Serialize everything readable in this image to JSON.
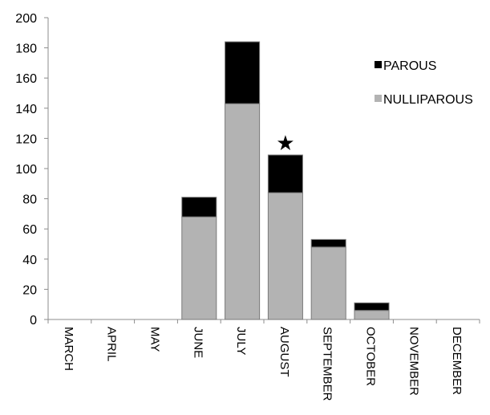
{
  "chart_data": {
    "type": "bar",
    "stacked": true,
    "categories": [
      "MARCH",
      "APRIL",
      "MAY",
      "JUNE",
      "JULY",
      "AUGUST",
      "SEPTEMBER",
      "OCTOBER",
      "NOVEMBER",
      "DECEMBER"
    ],
    "series": [
      {
        "name": "NULLIPAROUS",
        "color": "#b3b3b3",
        "values": [
          0,
          0,
          0,
          68,
          143,
          84,
          48,
          6,
          0,
          0
        ]
      },
      {
        "name": "PAROUS",
        "color": "#000000",
        "values": [
          0,
          0,
          0,
          13,
          41,
          25,
          5,
          5,
          0,
          0
        ]
      }
    ],
    "ylim": [
      0,
      200
    ],
    "yticks": [
      0,
      20,
      40,
      60,
      80,
      100,
      120,
      140,
      160,
      180,
      200
    ],
    "grid": false,
    "legend_position": "top-right",
    "annotations": [
      {
        "category": "AUGUST",
        "symbol": "★"
      }
    ]
  }
}
